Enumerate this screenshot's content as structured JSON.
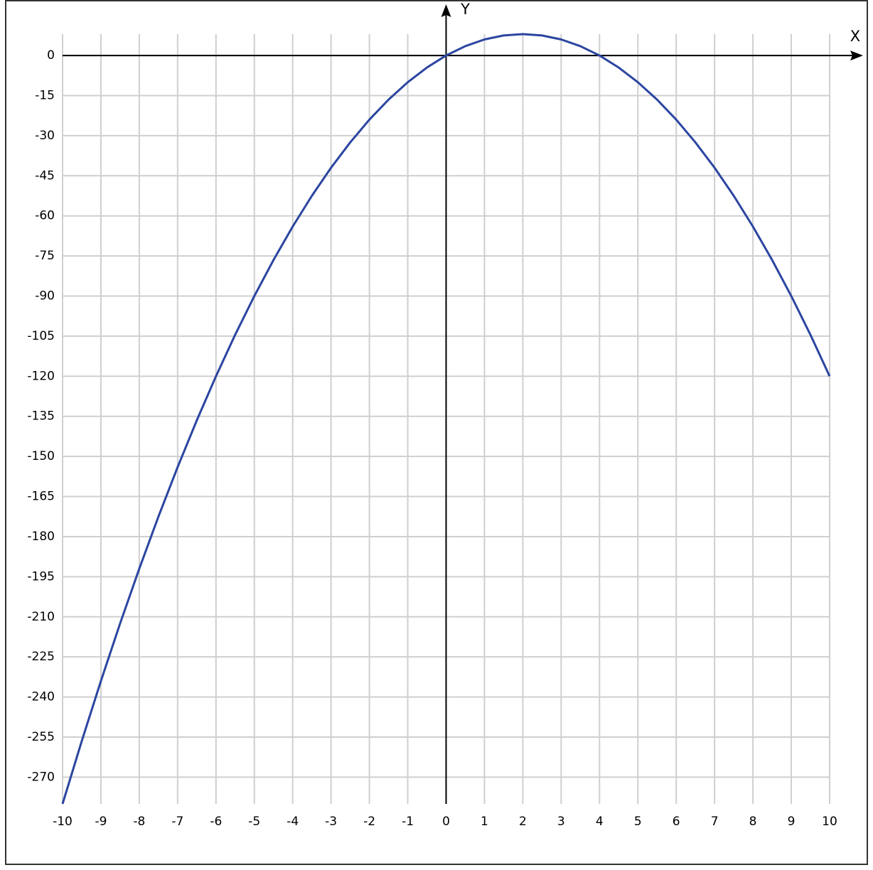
{
  "chart_data": {
    "type": "line",
    "x_label": "X",
    "y_label": "Y",
    "x": [
      -10,
      -9.5,
      -9,
      -8.5,
      -8,
      -7.5,
      -7,
      -6.5,
      -6,
      -5.5,
      -5,
      -4.5,
      -4,
      -3.5,
      -3,
      -2.5,
      -2,
      -1.5,
      -1,
      -0.5,
      0,
      0.5,
      1,
      1.5,
      2,
      2.5,
      3,
      3.5,
      4,
      4.5,
      5,
      5.5,
      6,
      6.5,
      7,
      7.5,
      8,
      8.5,
      9,
      9.5,
      10
    ],
    "series": [
      {
        "color": "#2b45a0",
        "values": [
          -280,
          -256.5,
          -234,
          -212.5,
          -192,
          -172.5,
          -154,
          -136.5,
          -120,
          -104.5,
          -90,
          -76.5,
          -64,
          -52.5,
          -42,
          -32.5,
          -24,
          -16.5,
          -10,
          -4.5,
          0,
          3.5,
          6,
          7.5,
          8,
          7.5,
          6,
          3.5,
          0,
          -4.5,
          -10,
          -16.5,
          -24,
          -32.5,
          -42,
          -52.5,
          -64,
          -76.5,
          -90,
          -104.5,
          -120
        ]
      }
    ],
    "xlim": [
      -10,
      10
    ],
    "ylim": [
      -280,
      8
    ],
    "xticks": [
      -10,
      -9,
      -8,
      -7,
      -6,
      -5,
      -4,
      -3,
      -2,
      -1,
      0,
      1,
      2,
      3,
      4,
      5,
      6,
      7,
      8,
      9,
      10
    ],
    "yticks": [
      0,
      -15,
      -30,
      -45,
      -60,
      -75,
      -90,
      -105,
      -120,
      -135,
      -150,
      -165,
      -180,
      -195,
      -210,
      -225,
      -240,
      -255,
      -270
    ],
    "grid": true
  }
}
